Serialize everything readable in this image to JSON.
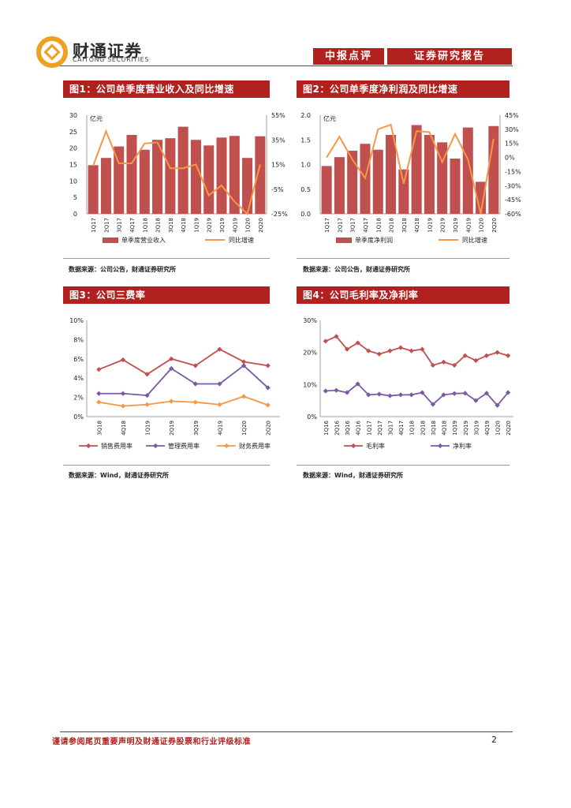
{
  "header": {
    "logo_cn": "财通证券",
    "logo_en": "CAITONG SECURITIES",
    "tag1": "中报点评",
    "tag2": "证券研究报告",
    "brand_color": "#b1221e"
  },
  "figures": {
    "f1": {
      "title": "图1：公司单季度营业收入及同比增速",
      "source": "数据来源：公司公告，财通证券研究所"
    },
    "f2": {
      "title": "图2：公司单季度净利润及同比增速",
      "source": "数据来源：公司公告，财通证券研究所"
    },
    "f3": {
      "title": "图3：公司三费率",
      "source": "数据来源：Wind，财通证券研究所"
    },
    "f4": {
      "title": "图4：公司毛利率及净利率",
      "source": "数据来源：Wind，财通证券研究所"
    }
  },
  "chart_data": [
    {
      "id": "c1",
      "type": "bar+line",
      "unit_label": "亿元",
      "categories": [
        "1Q17",
        "2Q17",
        "3Q17",
        "4Q17",
        "1Q18",
        "2Q18",
        "3Q18",
        "4Q18",
        "1Q19",
        "2Q19",
        "3Q19",
        "4Q19",
        "1Q20",
        "2Q20"
      ],
      "bar": {
        "name": "单季度营业收入",
        "values": [
          14.8,
          17,
          20.5,
          24,
          19.5,
          22.5,
          23,
          26.5,
          22.5,
          20.8,
          23.2,
          23.7,
          17,
          23.6
        ]
      },
      "line": {
        "name": "同比增速",
        "values": [
          14,
          42,
          16,
          16,
          32,
          33,
          12,
          12,
          15,
          -10,
          -2,
          -15,
          -25,
          15
        ]
      },
      "ylim_left": [
        0,
        30
      ],
      "yticks_left": [
        "0",
        "5",
        "10",
        "15",
        "20",
        "25",
        "30"
      ],
      "ylim_right": [
        -25,
        55
      ],
      "yticks_right": [
        "-25%",
        "-5%",
        "15%",
        "35%",
        "55%"
      ]
    },
    {
      "id": "c2",
      "type": "bar+line",
      "unit_label": "亿元",
      "categories": [
        "1Q17",
        "2Q17",
        "3Q17",
        "4Q17",
        "1Q18",
        "2Q18",
        "3Q18",
        "4Q18",
        "1Q19",
        "2Q19",
        "3Q19",
        "4Q19",
        "1Q20",
        "2Q20"
      ],
      "bar": {
        "name": "单季度净利润",
        "values": [
          0.97,
          1.15,
          1.28,
          1.42,
          1.3,
          1.6,
          0.9,
          1.8,
          1.6,
          1.45,
          1.12,
          1.75,
          0.65,
          1.78
        ]
      },
      "line": {
        "name": "同比增速",
        "values": [
          0,
          22,
          -2,
          -22,
          30,
          35,
          -28,
          28,
          27,
          -5,
          25,
          -2,
          -60,
          20
        ]
      },
      "ylim_left": [
        0,
        2.0
      ],
      "yticks_left": [
        "0.0",
        "0.5",
        "1.0",
        "1.5",
        "2.0"
      ],
      "ylim_right": [
        -60,
        45
      ],
      "yticks_right": [
        "-60%",
        "-45%",
        "-30%",
        "-15%",
        "0%",
        "15%",
        "30%",
        "45%"
      ]
    },
    {
      "id": "c3",
      "type": "line",
      "categories": [
        "3Q18",
        "4Q18",
        "1Q19",
        "2Q19",
        "3Q19",
        "4Q19",
        "1Q20",
        "2Q20"
      ],
      "series": [
        {
          "name": "销售费用率",
          "values": [
            4.9,
            5.9,
            4.4,
            6.0,
            5.3,
            7.0,
            5.7,
            5.3
          ],
          "color": "#c0504d"
        },
        {
          "name": "管理费用率",
          "values": [
            2.4,
            2.4,
            2.2,
            5.0,
            3.4,
            3.4,
            5.3,
            3.0
          ],
          "color": "#7a5aa6"
        },
        {
          "name": "财务费用率",
          "values": [
            1.5,
            1.1,
            1.25,
            1.6,
            1.5,
            1.25,
            2.1,
            1.2
          ],
          "color": "#f79646"
        }
      ],
      "ylim": [
        0,
        10
      ],
      "yticks": [
        "0%",
        "2%",
        "4%",
        "6%",
        "8%",
        "10%"
      ]
    },
    {
      "id": "c4",
      "type": "line",
      "categories": [
        "1Q16",
        "2Q16",
        "3Q16",
        "4Q16",
        "1Q17",
        "2Q17",
        "3Q17",
        "4Q17",
        "1Q18",
        "2Q18",
        "3Q18",
        "4Q18",
        "1Q19",
        "2Q19",
        "3Q19",
        "4Q19",
        "1Q20",
        "2Q20"
      ],
      "series": [
        {
          "name": "毛利率",
          "values": [
            23.5,
            25,
            21,
            23,
            20.5,
            19.5,
            20.5,
            21.5,
            20.5,
            21,
            16,
            17,
            16,
            19,
            17.5,
            19,
            20,
            19
          ],
          "color": "#c0504d"
        },
        {
          "name": "净利率",
          "values": [
            8,
            8.2,
            7.5,
            10.2,
            6.8,
            7,
            6.5,
            6.8,
            6.8,
            7.5,
            3.8,
            6.8,
            7.2,
            7.3,
            5,
            7.3,
            3.5,
            7.5
          ],
          "color": "#7a5aa6"
        }
      ],
      "ylim": [
        0,
        30
      ],
      "yticks": [
        "0%",
        "10%",
        "20%",
        "30%"
      ]
    }
  ],
  "footer": {
    "disclaimer": "谨请参阅尾页重要声明及财通证券股票和行业评级标准",
    "page": "2"
  }
}
